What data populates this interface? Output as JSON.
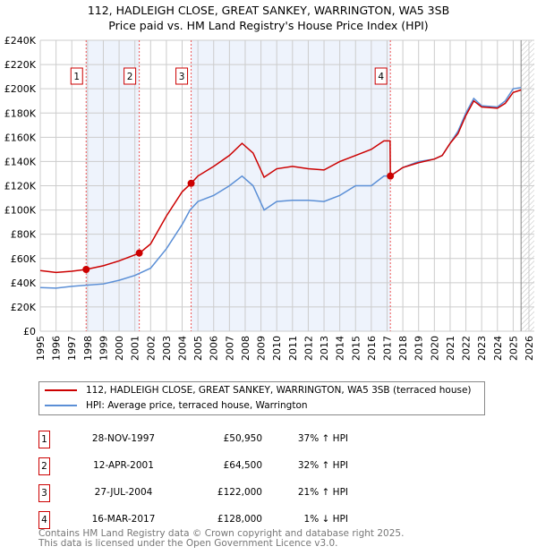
{
  "chart_data": {
    "type": "line",
    "title": "112, HADLEIGH CLOSE, GREAT SANKEY, WARRINGTON, WA5 3SB",
    "subtitle": "Price paid vs. HM Land Registry's House Price Index (HPI)",
    "xlim": [
      1995,
      2026
    ],
    "ylim": [
      0,
      240000
    ],
    "x_ticks": [
      "1995",
      "1996",
      "1997",
      "1998",
      "1999",
      "2000",
      "2001",
      "2002",
      "2003",
      "2004",
      "2005",
      "2006",
      "2007",
      "2008",
      "2009",
      "2010",
      "2011",
      "2012",
      "2013",
      "2014",
      "2015",
      "2016",
      "2017",
      "2018",
      "2019",
      "2020",
      "2021",
      "2022",
      "2023",
      "2024",
      "2025",
      "2026"
    ],
    "y_ticks": [
      "£0",
      "£20K",
      "£40K",
      "£60K",
      "£80K",
      "£100K",
      "£120K",
      "£140K",
      "£160K",
      "£180K",
      "£200K",
      "£220K",
      "£240K"
    ],
    "grid": true,
    "series": [
      {
        "name": "112, HADLEIGH CLOSE, GREAT SANKEY, WARRINGTON, WA5 3SB (terraced house)",
        "color": "#cc0000",
        "x": [
          1995,
          1996,
          1997,
          1997.9,
          1999,
          2000,
          2001.3,
          2002,
          2003,
          2004,
          2004.57,
          2005,
          2006,
          2007,
          2007.8,
          2008.5,
          2009.2,
          2010,
          2011,
          2012,
          2013,
          2014,
          2015,
          2016,
          2016.8,
          2017.19,
          2017.21,
          2018,
          2019,
          2020,
          2020.5,
          2021,
          2021.5,
          2022,
          2022.5,
          2023,
          2024,
          2024.5,
          2025,
          2025.5
        ],
        "y": [
          50000,
          48500,
          49500,
          50950,
          54000,
          58000,
          64500,
          72000,
          95000,
          115000,
          122000,
          128000,
          136000,
          145000,
          155000,
          147000,
          127000,
          134000,
          136000,
          134000,
          133000,
          140000,
          145000,
          150000,
          157000,
          157000,
          128000,
          135000,
          139000,
          142000,
          145000,
          155000,
          163000,
          178000,
          190000,
          185000,
          184000,
          188000,
          197000,
          199000
        ]
      },
      {
        "name": "HPI: Average price, terraced house, Warrington",
        "color": "#5b8fd6",
        "x": [
          1995,
          1996,
          1997,
          1998,
          1999,
          2000,
          2001,
          2002,
          2003,
          2004,
          2004.5,
          2005,
          2006,
          2007,
          2007.8,
          2008.5,
          2009.2,
          2010,
          2011,
          2012,
          2013,
          2014,
          2015,
          2016,
          2016.8,
          2017.2,
          2018,
          2019,
          2020,
          2020.5,
          2021,
          2021.5,
          2022,
          2022.5,
          2023,
          2024,
          2024.5,
          2025,
          2025.5
        ],
        "y": [
          36000,
          35500,
          37000,
          38000,
          39000,
          42000,
          46000,
          52000,
          68000,
          88000,
          100000,
          107000,
          112000,
          120000,
          128000,
          120000,
          100000,
          107000,
          108000,
          108000,
          107000,
          112000,
          120000,
          120000,
          128000,
          128000,
          135000,
          140000,
          142000,
          145000,
          155000,
          165000,
          180000,
          192000,
          186000,
          185000,
          190000,
          200000,
          201000
        ]
      }
    ],
    "sales": [
      {
        "label": "1",
        "x": 1997.91,
        "price": 50950,
        "date": "28-NOV-1997",
        "price_text": "£50,950",
        "hpi": "37% ↑ HPI"
      },
      {
        "label": "2",
        "x": 2001.28,
        "price": 64500,
        "date": "12-APR-2001",
        "price_text": "£64,500",
        "hpi": "32% ↑ HPI"
      },
      {
        "label": "3",
        "x": 2004.57,
        "price": 122000,
        "date": "27-JUL-2004",
        "price_text": "£122,000",
        "hpi": "21% ↑ HPI"
      },
      {
        "label": "4",
        "x": 2017.21,
        "price": 128000,
        "date": "16-MAR-2017",
        "price_text": "£128,000",
        "hpi": "1% ↓ HPI"
      }
    ],
    "shaded_ranges": [
      [
        1997.91,
        2001.28
      ],
      [
        2004.57,
        2017.21
      ]
    ],
    "forecast_from": 2025.5
  },
  "footer": [
    "Contains HM Land Registry data © Crown copyright and database right 2025.",
    "This data is licensed under the Open Government Licence v3.0."
  ]
}
